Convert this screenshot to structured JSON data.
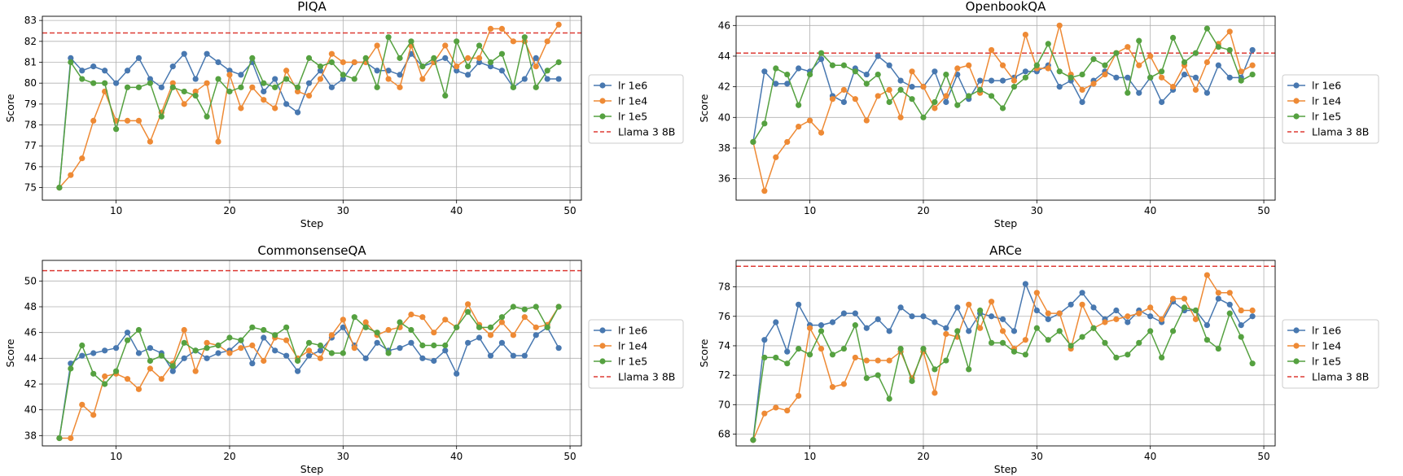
{
  "figure": {
    "step_label": "Step",
    "score_label": "Score",
    "reference_line_label": "Llama 3 8B"
  },
  "series_styles": [
    {
      "name": "lr 1e6",
      "color": "#4878b0"
    },
    {
      "name": "lr 1e4",
      "color": "#ee8a35"
    },
    {
      "name": "lr 1e5",
      "color": "#55a140"
    }
  ],
  "reference_color": "#dd3b35",
  "chart_data": [
    {
      "type": "line",
      "title": "PIQA",
      "xlabel": "Step",
      "ylabel": "Score",
      "xlim": [
        3.5,
        51
      ],
      "ylim": [
        74.4,
        83.2
      ],
      "xticks": [
        10,
        20,
        30,
        40,
        50
      ],
      "yticks": [
        75,
        76,
        77,
        78,
        79,
        80,
        81,
        82,
        83
      ],
      "grid": true,
      "legend_position": "right",
      "reference": {
        "name": "Llama 3 8B",
        "value": 82.4
      },
      "x": [
        5,
        6,
        7,
        8,
        9,
        10,
        11,
        12,
        13,
        14,
        15,
        16,
        17,
        18,
        19,
        20,
        21,
        22,
        23,
        24,
        25,
        26,
        27,
        28,
        29,
        30,
        31,
        32,
        33,
        34,
        35,
        36,
        37,
        38,
        39,
        40,
        41,
        42,
        43,
        44,
        45,
        46,
        47,
        48,
        49
      ],
      "series": [
        {
          "name": "lr 1e6",
          "values": [
            75.0,
            81.2,
            80.6,
            80.8,
            80.6,
            80.0,
            80.6,
            81.2,
            80.2,
            79.8,
            80.8,
            81.4,
            80.2,
            81.4,
            81.0,
            80.6,
            80.4,
            81.0,
            79.6,
            80.2,
            79.0,
            78.6,
            80.0,
            80.6,
            79.8,
            80.2,
            81.0,
            81.0,
            80.6,
            80.6,
            80.4,
            81.4,
            80.8,
            81.0,
            81.2,
            80.6,
            80.4,
            81.0,
            80.8,
            80.6,
            79.8,
            80.2,
            81.2,
            80.2,
            80.2
          ]
        },
        {
          "name": "lr 1e4",
          "values": [
            75.0,
            75.6,
            76.4,
            78.2,
            79.6,
            78.2,
            78.2,
            78.2,
            77.2,
            78.6,
            80.0,
            79.0,
            79.6,
            80.0,
            77.2,
            80.4,
            78.8,
            79.8,
            79.2,
            78.8,
            80.6,
            79.6,
            79.4,
            80.2,
            81.4,
            81.0,
            81.0,
            81.0,
            81.8,
            80.2,
            79.8,
            81.8,
            80.2,
            81.0,
            81.8,
            80.8,
            81.2,
            81.2,
            82.6,
            82.6,
            82.0,
            82.0,
            80.8,
            82.0,
            82.8
          ]
        },
        {
          "name": "lr 1e5",
          "values": [
            75.0,
            81.0,
            80.2,
            80.0,
            80.0,
            77.8,
            79.8,
            79.8,
            80.0,
            78.4,
            79.8,
            79.6,
            79.4,
            78.4,
            80.2,
            79.6,
            79.8,
            81.2,
            80.0,
            79.8,
            80.2,
            79.8,
            81.2,
            80.8,
            81.0,
            80.4,
            80.2,
            81.2,
            79.8,
            82.2,
            81.2,
            82.0,
            80.8,
            81.2,
            79.4,
            82.0,
            80.8,
            81.8,
            81.0,
            81.4,
            79.8,
            82.2,
            79.8,
            80.6,
            81.0
          ]
        }
      ]
    },
    {
      "type": "line",
      "title": "OpenbookQA",
      "xlabel": "Step",
      "ylabel": "Score",
      "xlim": [
        3.5,
        51
      ],
      "ylim": [
        34.6,
        46.6
      ],
      "xticks": [
        10,
        20,
        30,
        40,
        50
      ],
      "yticks": [
        36,
        38,
        40,
        42,
        44,
        46
      ],
      "grid": true,
      "legend_position": "right",
      "reference": {
        "name": "Llama 3 8B",
        "value": 44.2
      },
      "x": [
        5,
        6,
        7,
        8,
        9,
        10,
        11,
        12,
        13,
        14,
        15,
        16,
        17,
        18,
        19,
        20,
        21,
        22,
        23,
        24,
        25,
        26,
        27,
        28,
        29,
        30,
        31,
        32,
        33,
        34,
        35,
        36,
        37,
        38,
        39,
        40,
        41,
        42,
        43,
        44,
        45,
        46,
        47,
        48,
        49
      ],
      "series": [
        {
          "name": "lr 1e6",
          "values": [
            38.4,
            43.0,
            42.2,
            42.2,
            43.2,
            43.0,
            43.8,
            41.4,
            41.0,
            43.2,
            42.8,
            44.0,
            43.4,
            42.4,
            42.0,
            42.0,
            43.0,
            41.0,
            42.8,
            41.2,
            42.4,
            42.4,
            42.4,
            42.6,
            43.0,
            43.0,
            43.4,
            42.0,
            42.4,
            41.0,
            42.4,
            43.0,
            42.6,
            42.6,
            41.6,
            42.6,
            41.0,
            41.8,
            42.8,
            42.6,
            41.6,
            43.4,
            42.6,
            42.6,
            44.4
          ]
        },
        {
          "name": "lr 1e4",
          "values": [
            38.4,
            35.2,
            37.4,
            38.4,
            39.4,
            39.8,
            39.0,
            41.2,
            41.8,
            41.2,
            39.8,
            41.4,
            41.8,
            40.0,
            43.0,
            42.0,
            40.6,
            41.4,
            43.2,
            43.4,
            41.6,
            44.4,
            43.4,
            42.4,
            45.4,
            43.2,
            43.2,
            46.0,
            42.8,
            41.8,
            42.2,
            42.8,
            44.2,
            44.6,
            43.4,
            44.0,
            42.6,
            42.0,
            43.4,
            41.8,
            43.6,
            44.8,
            45.6,
            43.0,
            43.4
          ]
        },
        {
          "name": "lr 1e5",
          "values": [
            38.4,
            39.6,
            43.2,
            42.8,
            40.8,
            42.8,
            44.2,
            43.4,
            43.4,
            43.0,
            42.2,
            42.8,
            41.0,
            41.8,
            41.2,
            40.0,
            41.0,
            42.8,
            40.8,
            41.4,
            41.8,
            41.4,
            40.6,
            42.0,
            42.6,
            43.4,
            44.8,
            43.0,
            42.6,
            42.8,
            43.8,
            43.4,
            44.2,
            41.6,
            45.0,
            42.6,
            43.0,
            45.2,
            43.6,
            44.2,
            45.8,
            44.6,
            44.4,
            42.4,
            42.8
          ]
        }
      ]
    },
    {
      "type": "line",
      "title": "CommonsenseQA",
      "xlabel": "Step",
      "ylabel": "Score",
      "xlim": [
        3.5,
        51
      ],
      "ylim": [
        37.2,
        51.6
      ],
      "xticks": [
        10,
        20,
        30,
        40,
        50
      ],
      "yticks": [
        38,
        40,
        42,
        44,
        46,
        48,
        50
      ],
      "grid": true,
      "legend_position": "right",
      "reference": {
        "name": "Llama 3 8B",
        "value": 50.8
      },
      "x": [
        5,
        6,
        7,
        8,
        9,
        10,
        11,
        12,
        13,
        14,
        15,
        16,
        17,
        18,
        19,
        20,
        21,
        22,
        23,
        24,
        25,
        26,
        27,
        28,
        29,
        30,
        31,
        32,
        33,
        34,
        35,
        36,
        37,
        38,
        39,
        40,
        41,
        42,
        43,
        44,
        45,
        46,
        47,
        48,
        49
      ],
      "series": [
        {
          "name": "lr 1e6",
          "values": [
            37.8,
            43.6,
            44.2,
            44.4,
            44.6,
            44.8,
            46.0,
            44.4,
            44.8,
            44.4,
            43.0,
            44.0,
            44.6,
            44.0,
            44.4,
            44.6,
            45.4,
            43.6,
            45.6,
            44.6,
            44.2,
            43.0,
            44.2,
            44.6,
            45.6,
            46.4,
            45.0,
            44.0,
            45.2,
            44.6,
            44.8,
            45.2,
            44.0,
            43.8,
            44.6,
            42.8,
            45.2,
            45.6,
            44.2,
            45.2,
            44.2,
            44.2,
            45.8,
            46.4,
            44.8
          ]
        },
        {
          "name": "lr 1e4",
          "values": [
            37.8,
            37.8,
            40.4,
            39.6,
            42.6,
            42.8,
            42.4,
            41.6,
            43.2,
            42.4,
            43.6,
            46.2,
            43.0,
            45.2,
            45.0,
            44.4,
            44.8,
            45.0,
            43.8,
            45.6,
            45.4,
            44.0,
            44.6,
            44.0,
            45.8,
            47.0,
            44.8,
            46.8,
            45.8,
            46.2,
            46.4,
            47.4,
            47.2,
            46.0,
            47.0,
            46.4,
            48.2,
            46.6,
            45.8,
            46.8,
            45.8,
            47.2,
            46.4,
            46.6,
            48.0
          ]
        },
        {
          "name": "lr 1e5",
          "values": [
            37.8,
            43.2,
            45.0,
            42.8,
            42.0,
            43.0,
            45.4,
            46.2,
            43.8,
            44.2,
            43.4,
            45.2,
            44.6,
            44.8,
            45.0,
            45.6,
            45.4,
            46.4,
            46.2,
            45.8,
            46.4,
            43.8,
            45.2,
            45.0,
            44.4,
            44.4,
            47.2,
            46.4,
            46.0,
            44.4,
            46.8,
            46.2,
            45.0,
            45.0,
            45.0,
            46.4,
            47.6,
            46.4,
            46.4,
            47.2,
            48.0,
            47.8,
            48.0,
            46.4,
            48.0
          ]
        }
      ]
    },
    {
      "type": "line",
      "title": "ARCe",
      "xlabel": "Step",
      "ylabel": "Score",
      "xlim": [
        3.5,
        51
      ],
      "ylim": [
        67.2,
        79.8
      ],
      "xticks": [
        10,
        20,
        30,
        40,
        50
      ],
      "yticks": [
        68,
        70,
        72,
        74,
        76,
        78
      ],
      "grid": true,
      "legend_position": "right",
      "reference": {
        "name": "Llama 3 8B",
        "value": 79.4
      },
      "x": [
        5,
        6,
        7,
        8,
        9,
        10,
        11,
        12,
        13,
        14,
        15,
        16,
        17,
        18,
        19,
        20,
        21,
        22,
        23,
        24,
        25,
        26,
        27,
        28,
        29,
        30,
        31,
        32,
        33,
        34,
        35,
        36,
        37,
        38,
        39,
        40,
        41,
        42,
        43,
        44,
        45,
        46,
        47,
        48,
        49
      ],
      "series": [
        {
          "name": "lr 1e6",
          "values": [
            67.6,
            74.4,
            75.6,
            73.6,
            76.8,
            75.4,
            75.4,
            75.6,
            76.2,
            76.2,
            75.2,
            75.8,
            75.0,
            76.6,
            76.0,
            76.0,
            75.6,
            75.2,
            76.6,
            75.0,
            76.2,
            76.0,
            75.8,
            75.0,
            78.2,
            76.4,
            75.8,
            76.2,
            76.8,
            77.6,
            76.6,
            75.8,
            76.4,
            75.6,
            76.4,
            76.0,
            75.6,
            77.0,
            76.4,
            76.4,
            75.4,
            77.2,
            76.8,
            75.4,
            76.0
          ]
        },
        {
          "name": "lr 1e4",
          "values": [
            67.6,
            69.4,
            69.8,
            69.6,
            70.6,
            75.2,
            73.8,
            71.2,
            71.4,
            73.2,
            73.0,
            73.0,
            73.0,
            73.6,
            71.8,
            73.6,
            70.8,
            74.8,
            74.6,
            76.8,
            75.2,
            77.0,
            75.0,
            73.8,
            74.4,
            77.6,
            76.2,
            76.2,
            73.8,
            76.8,
            75.2,
            75.6,
            75.8,
            76.0,
            76.2,
            76.6,
            75.8,
            77.2,
            77.2,
            75.8,
            78.8,
            77.6,
            77.6,
            76.4,
            76.4
          ]
        },
        {
          "name": "lr 1e5",
          "values": [
            67.6,
            73.2,
            73.2,
            72.8,
            73.8,
            73.4,
            75.0,
            73.4,
            73.8,
            75.4,
            71.8,
            72.0,
            70.4,
            73.8,
            71.6,
            73.8,
            72.4,
            73.0,
            75.0,
            72.4,
            76.4,
            74.2,
            74.2,
            73.6,
            73.4,
            75.2,
            74.4,
            75.0,
            74.0,
            74.6,
            75.2,
            74.2,
            73.2,
            73.4,
            74.2,
            75.0,
            73.2,
            75.0,
            76.6,
            76.4,
            74.4,
            73.8,
            76.2,
            74.6,
            72.8
          ]
        }
      ]
    }
  ]
}
